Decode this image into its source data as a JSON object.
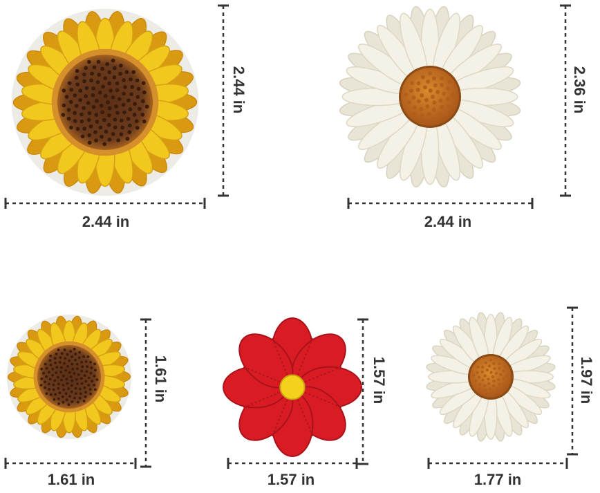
{
  "scene": "Five embroidered iron-on flower patches with measurement lines",
  "colors": {
    "sunflower_petal": "#f2c81e",
    "sunflower_petal_dark": "#d99a12",
    "sunflower_center": "#6b3a1c",
    "daisy_petal": "#f4f1e6",
    "daisy_center": "#c06a18",
    "red_petal": "#d91c24",
    "red_center": "#f3d21c",
    "dimension_line": "#333333"
  },
  "patches": [
    {
      "kind": "sunflower",
      "width_label": "2.44 in",
      "height_label": "2.44 in"
    },
    {
      "kind": "white-daisy",
      "width_label": "2.44 in",
      "height_label": "2.36 in"
    },
    {
      "kind": "small-sunflower",
      "width_label": "1.61 in",
      "height_label": "1.61 in"
    },
    {
      "kind": "red-flower",
      "width_label": "1.57 in",
      "height_label": "1.57 in"
    },
    {
      "kind": "small-white-daisy",
      "width_label": "1.77 in",
      "height_label": "1.97 in"
    }
  ]
}
